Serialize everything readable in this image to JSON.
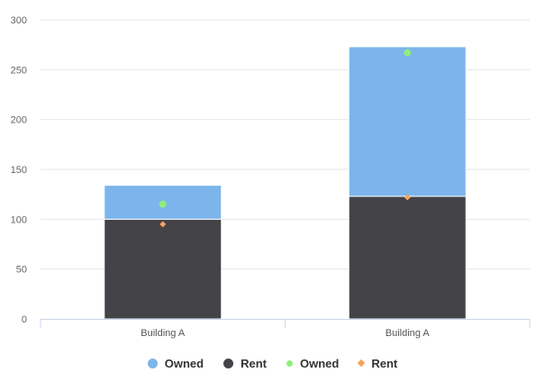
{
  "chart_data": {
    "type": "bar",
    "stacked": true,
    "categories": [
      "Building A",
      "Building A"
    ],
    "ylim": [
      0,
      300
    ],
    "yticks": [
      0,
      50,
      100,
      150,
      200,
      250,
      300
    ],
    "grid": true,
    "legend_position": "bottom-center",
    "series": [
      {
        "name": "Rent",
        "kind": "bar",
        "values": [
          100,
          123
        ],
        "color": "#434348"
      },
      {
        "name": "Owned",
        "kind": "bar",
        "values": [
          34,
          150
        ],
        "color": "#7cb5ec"
      },
      {
        "name": "Owned",
        "kind": "scatter",
        "marker": "circle",
        "values": [
          115,
          267
        ],
        "color": "#90ed7d"
      },
      {
        "name": "Rent",
        "kind": "scatter",
        "marker": "diamond",
        "values": [
          95,
          122
        ],
        "color": "#f7a35c"
      }
    ],
    "legend": [
      {
        "label": "Owned",
        "marker": "circle-lg",
        "color": "#7cb5ec"
      },
      {
        "label": "Rent",
        "marker": "circle-lg",
        "color": "#434348"
      },
      {
        "label": "Owned",
        "marker": "circle-sm",
        "color": "#90ed7d"
      },
      {
        "label": "Rent",
        "marker": "diamond",
        "color": "#f7a35c"
      }
    ]
  }
}
